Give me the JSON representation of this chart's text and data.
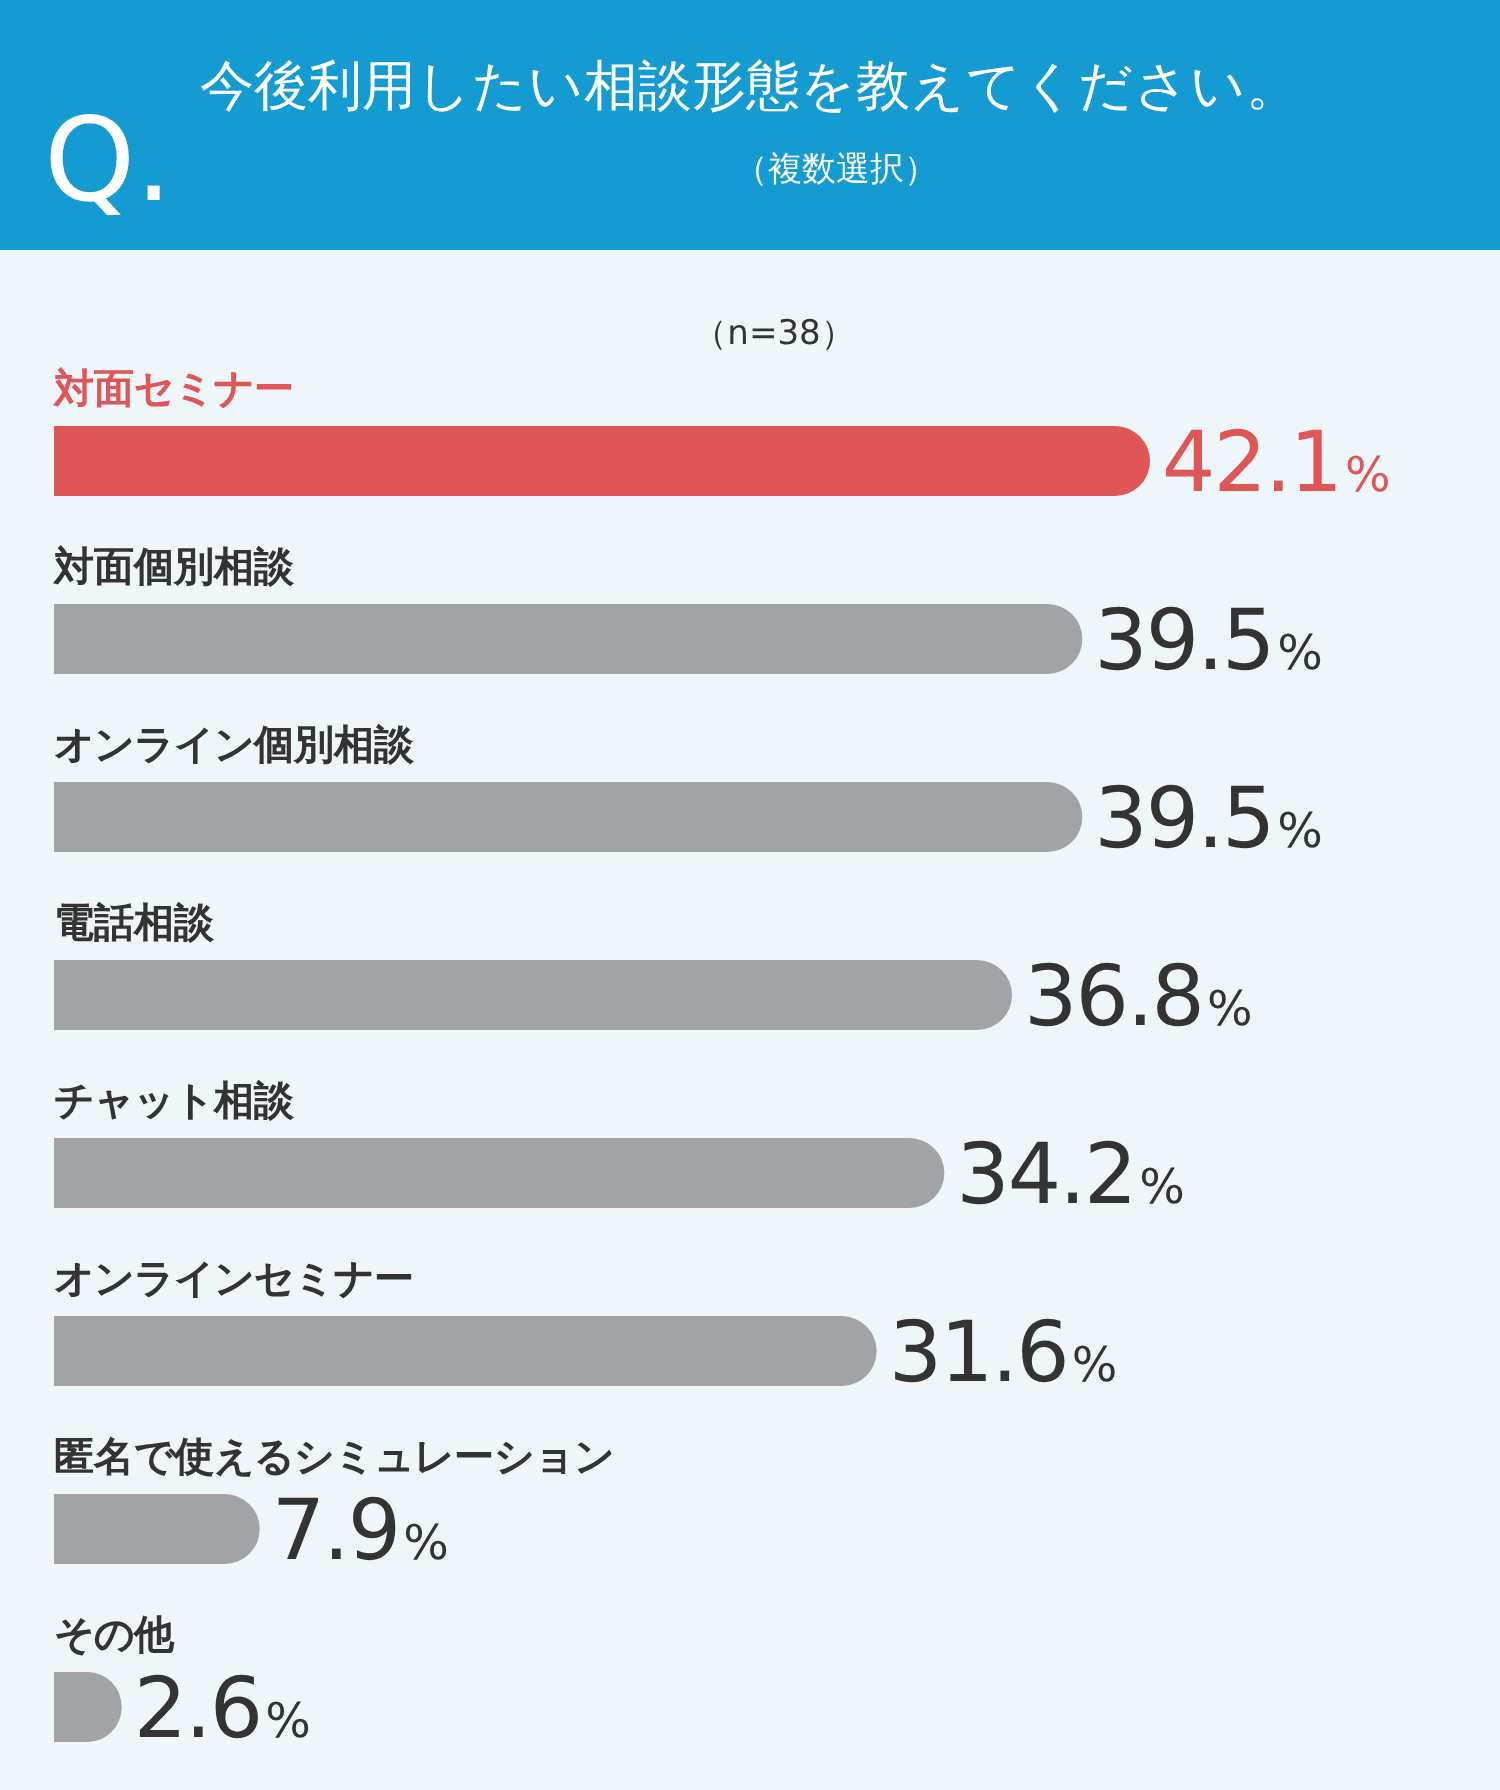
{
  "chart_data": {
    "type": "bar",
    "orientation": "horizontal",
    "title": "今後利用したい相談形態を教えてください。",
    "subtitle": "（複数選択）",
    "annotations": [
      "Q.",
      "（n=38）"
    ],
    "categories": [
      "対面セミナー",
      "対面個別相談",
      "オンライン個別相談",
      "電話相談",
      "チャット相談",
      "オンラインセミナー",
      "匿名で使えるシミュレーション",
      "その他"
    ],
    "values": [
      42.1,
      39.5,
      39.5,
      36.8,
      34.2,
      31.6,
      7.9,
      2.6
    ],
    "colors": [
      "#e05555",
      "#a2a3a7",
      "#a2a3a7",
      "#a2a3a7",
      "#a2a3a7",
      "#a2a3a7",
      "#a2a3a7",
      "#a2a3a7"
    ],
    "value_labels": [
      "42.1%",
      "39.5%",
      "39.5%",
      "36.8%",
      "34.2%",
      "31.6%",
      "7.9%",
      "2.6%"
    ]
  }
}
